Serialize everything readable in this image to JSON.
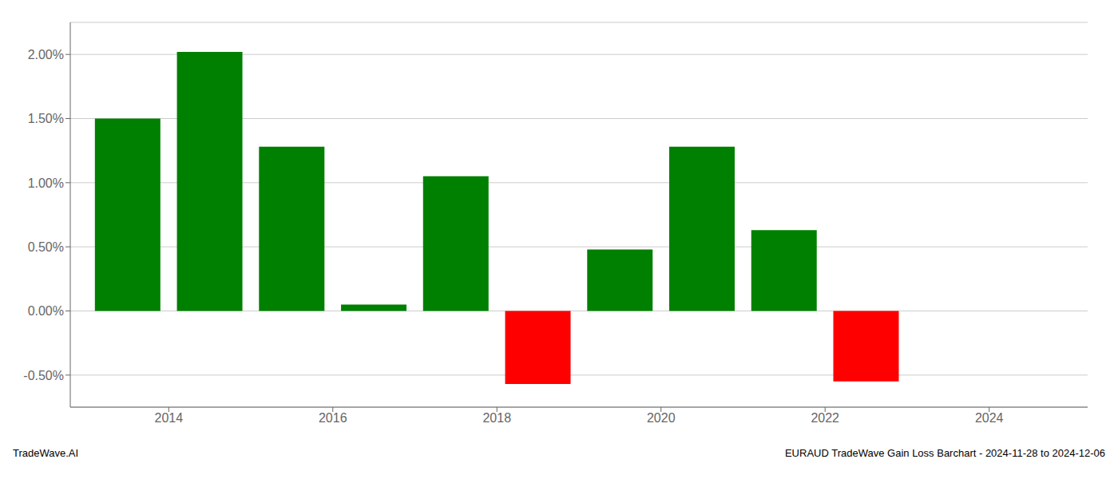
{
  "chart_data": {
    "type": "bar",
    "x": [
      2013.5,
      2014.5,
      2015.5,
      2016.5,
      2017.5,
      2018.5,
      2019.5,
      2020.5,
      2021.5,
      2022.5
    ],
    "values": [
      1.5,
      2.02,
      1.28,
      0.05,
      1.05,
      -0.57,
      0.48,
      1.28,
      0.63,
      -0.55
    ],
    "colors": [
      "#008000",
      "#008000",
      "#008000",
      "#008000",
      "#008000",
      "#ff0000",
      "#008000",
      "#008000",
      "#008000",
      "#ff0000"
    ],
    "xlim": [
      2012.8,
      2025.2
    ],
    "xticks": [
      2014,
      2016,
      2018,
      2020,
      2022,
      2024
    ],
    "ylim": [
      -0.75,
      2.25
    ],
    "yticks": [
      {
        "value": -0.5,
        "label": "-0.50%"
      },
      {
        "value": 0.0,
        "label": "0.00%"
      },
      {
        "value": 0.5,
        "label": "0.50%"
      },
      {
        "value": 1.0,
        "label": "1.00%"
      },
      {
        "value": 1.5,
        "label": "1.50%"
      },
      {
        "value": 2.0,
        "label": "2.00%"
      }
    ],
    "grid": true,
    "annotations": [
      "TradeWave.AI",
      "EURAUD TradeWave Gain Loss Barchart - 2024-11-28 to 2024-12-06"
    ]
  }
}
